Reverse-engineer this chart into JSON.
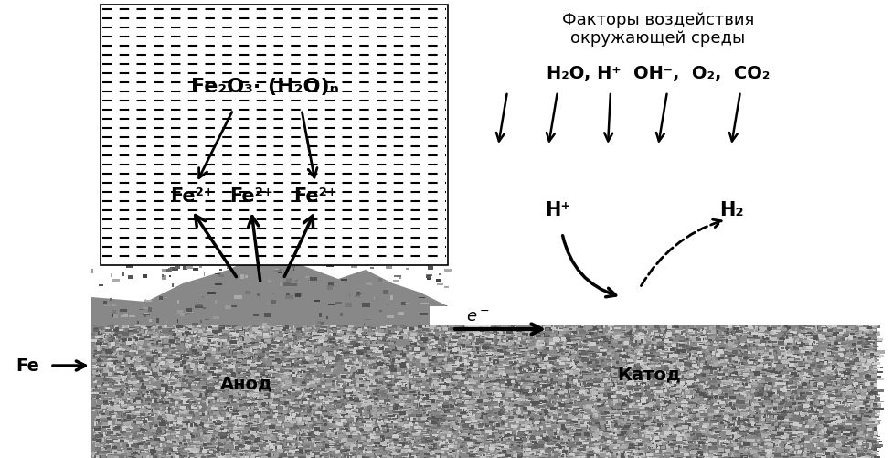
{
  "bg_color": "#ffffff",
  "fig_width": 9.77,
  "fig_height": 5.01,
  "dpi": 100,
  "rust_label": "Fe₂O₃· (H₂O)ₙ",
  "env_label_line1": "Факторы воздействия",
  "env_label_line2": "окружающей среды",
  "env_species": "H₂O, H⁺  OH⁻,  O₂,  CO₂",
  "fe2plus": "Fe²⁺",
  "hplus_label": "H⁺",
  "h2_label": "H₂",
  "fe_label": "Fe",
  "anode_label": "Анод",
  "cathode_label": "Катод",
  "electron_label": "e⁻"
}
